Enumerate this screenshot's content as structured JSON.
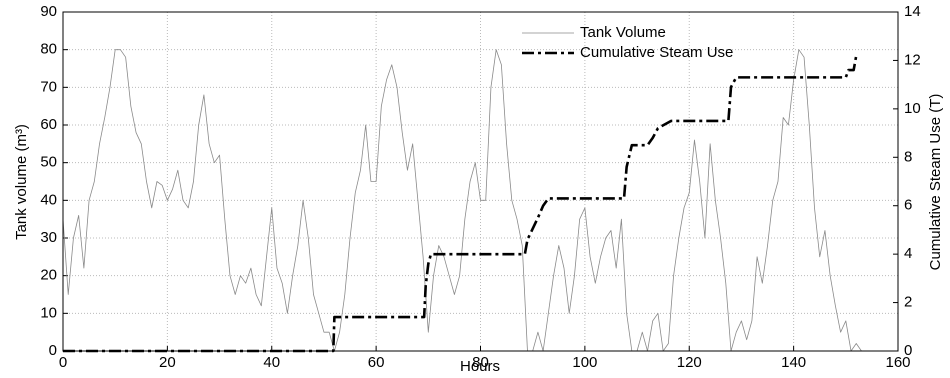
{
  "chart_data": {
    "type": "line",
    "xlabel": "Hours",
    "ylabel": "Tank volume (m³)",
    "y2label": "Cumulative Steam Use (T)",
    "xlim": [
      0,
      160
    ],
    "xticks": [
      0,
      20,
      40,
      60,
      80,
      100,
      120,
      140,
      160
    ],
    "ylim": [
      0,
      90
    ],
    "yticks": [
      0,
      10,
      20,
      30,
      40,
      50,
      60,
      70,
      80,
      90
    ],
    "y2lim": [
      0,
      14
    ],
    "y2ticks": [
      0,
      2,
      4,
      6,
      8,
      10,
      12,
      14
    ],
    "grid": true,
    "legend": "upper center",
    "series": [
      {
        "name": "Tank Volume",
        "color": "#8a8a8a",
        "style": "solid",
        "x": [
          0,
          1,
          2,
          3,
          4,
          5,
          6,
          7,
          8,
          9,
          10,
          11,
          12,
          13,
          14,
          15,
          16,
          17,
          18,
          19,
          20,
          21,
          22,
          23,
          24,
          25,
          26,
          27,
          28,
          29,
          30,
          31,
          32,
          33,
          34,
          35,
          36,
          37,
          38,
          39,
          40,
          41,
          42,
          43,
          44,
          45,
          46,
          47,
          48,
          49,
          50,
          51,
          52,
          53,
          54,
          55,
          56,
          57,
          58,
          59,
          60,
          61,
          62,
          63,
          64,
          65,
          66,
          67,
          68,
          69,
          70,
          71,
          72,
          73,
          74,
          75,
          76,
          77,
          78,
          79,
          80,
          81,
          82,
          83,
          84,
          85,
          86,
          87,
          88,
          89,
          90,
          91,
          92,
          93,
          94,
          95,
          96,
          97,
          98,
          99,
          100,
          101,
          102,
          103,
          104,
          105,
          106,
          107,
          108,
          109,
          110,
          111,
          112,
          113,
          114,
          115,
          116,
          117,
          118,
          119,
          120,
          121,
          122,
          123,
          124,
          125,
          126,
          127,
          128,
          129,
          130,
          131,
          132,
          133,
          134,
          135,
          136,
          137,
          138,
          139,
          140,
          141,
          142,
          143,
          144,
          145,
          146,
          147,
          148,
          149,
          150,
          151,
          152,
          153
        ],
        "values": [
          35,
          15,
          30,
          36,
          22,
          40,
          45,
          55,
          62,
          70,
          80,
          80,
          78,
          65,
          58,
          55,
          45,
          38,
          45,
          44,
          40,
          43,
          48,
          40,
          38,
          45,
          60,
          68,
          55,
          50,
          52,
          35,
          20,
          15,
          20,
          18,
          22,
          15,
          12,
          25,
          38,
          22,
          18,
          10,
          20,
          28,
          40,
          30,
          15,
          10,
          5,
          5,
          0,
          5,
          15,
          30,
          42,
          48,
          60,
          45,
          45,
          65,
          72,
          76,
          70,
          58,
          48,
          55,
          40,
          25,
          5,
          20,
          28,
          25,
          20,
          15,
          20,
          35,
          45,
          50,
          40,
          40,
          70,
          80,
          76,
          55,
          40,
          35,
          28,
          0,
          0,
          5,
          0,
          10,
          20,
          28,
          22,
          10,
          20,
          35,
          38,
          25,
          18,
          25,
          30,
          32,
          22,
          35,
          10,
          0,
          0,
          5,
          0,
          8,
          10,
          0,
          2,
          20,
          30,
          38,
          42,
          56,
          45,
          30,
          55,
          40,
          30,
          18,
          0,
          5,
          8,
          3,
          8,
          25,
          18,
          28,
          40,
          45,
          62,
          60,
          72,
          80,
          78,
          60,
          38,
          25,
          32,
          20,
          12,
          5,
          8,
          0,
          2,
          0
        ]
      },
      {
        "name": "Cumulative Steam Use",
        "color": "#000000",
        "style": "dashdot",
        "axis": "y2",
        "x": [
          0,
          51.8,
          52,
          69.2,
          69.5,
          70,
          70.5,
          88.5,
          89,
          91,
          92,
          93,
          107.5,
          108,
          109,
          112,
          113,
          114,
          116.5,
          127.5,
          128,
          129,
          150,
          150.5,
          151.5,
          152
        ],
        "values": [
          0,
          0,
          1.4,
          1.4,
          2.7,
          3.6,
          4.0,
          4.0,
          4.6,
          5.5,
          6.0,
          6.3,
          6.3,
          7.6,
          8.5,
          8.5,
          8.8,
          9.2,
          9.5,
          9.5,
          10.9,
          11.3,
          11.3,
          11.6,
          11.6,
          12.2
        ]
      }
    ]
  }
}
